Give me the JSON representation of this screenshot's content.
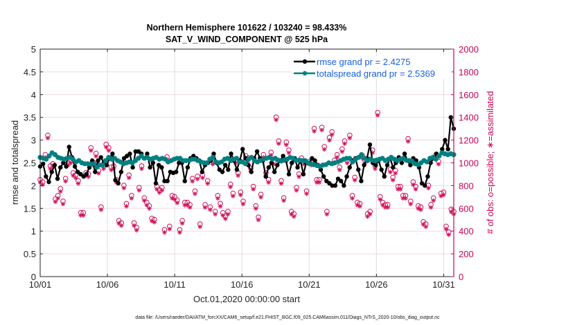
{
  "chart_data": {
    "type": "line",
    "title": "Northern Hemisphere 101622 / 103240 = 98.433%",
    "subtitle": "SAT_V_WIND_COMPONENT @ 525 hPa",
    "xlabel": "Oct.01,2020 00:00:00 start",
    "ylabel": "rmse and totalspread",
    "y2label": "# of obs: o=possible; ∗=assimilated",
    "xlim_days": [
      0,
      30.75
    ],
    "ylim": [
      0,
      5
    ],
    "y2lim": [
      0,
      2000
    ],
    "x_ticks": [
      {
        "day": 0,
        "label": "10/01"
      },
      {
        "day": 5,
        "label": "10/06"
      },
      {
        "day": 10,
        "label": "10/11"
      },
      {
        "day": 15,
        "label": "10/16"
      },
      {
        "day": 20,
        "label": "10/21"
      },
      {
        "day": 25,
        "label": "10/26"
      },
      {
        "day": 30,
        "label": "10/31"
      }
    ],
    "y_ticks": [
      "0",
      "0.5",
      "1",
      "1.5",
      "2",
      "2.5",
      "3",
      "3.5",
      "4",
      "4.5",
      "5"
    ],
    "y2_ticks": [
      "0",
      "200",
      "400",
      "600",
      "800",
      "1000",
      "1200",
      "1400",
      "1600",
      "1800",
      "2000"
    ],
    "grid": true,
    "legend_position": "top-right",
    "time_step_days": 0.25,
    "series": [
      {
        "name": "rmse grand pr = 2.4275",
        "color": "#000000",
        "axis": "left",
        "values": [
          2.42,
          2.48,
          2.2,
          2.08,
          2.3,
          2.45,
          2.15,
          2.4,
          2.5,
          2.42,
          2.85,
          2.62,
          2.42,
          2.3,
          2.25,
          2.2,
          2.25,
          2.4,
          2.55,
          2.3,
          2.55,
          2.62,
          2.5,
          2.45,
          2.6,
          2.7,
          2.12,
          2.05,
          2.3,
          2.6,
          2.65,
          2.7,
          2.4,
          2.75,
          2.75,
          2.7,
          2.6,
          2.7,
          2.4,
          2.5,
          2.05,
          2.45,
          2.4,
          2.1,
          2.1,
          2.3,
          2.28,
          2.3,
          2.5,
          2.5,
          2.1,
          2.4,
          2.6,
          2.65,
          2.6,
          2.55,
          2.3,
          2.45,
          2.5,
          2.55,
          2.7,
          2.5,
          2.35,
          2.3,
          2.45,
          2.35,
          2.7,
          2.55,
          2.35,
          2.55,
          2.8,
          2.6,
          2.45,
          2.3,
          2.6,
          2.75,
          2.6,
          2.55,
          2.2,
          2.4,
          2.5,
          2.3,
          2.45,
          2.55,
          2.65,
          2.55,
          2.25,
          2.5,
          2.6,
          2.4,
          2.55,
          2.25,
          2.5,
          2.5,
          2.6,
          2.55,
          2.45,
          2.35,
          2.2,
          2.1,
          2.05,
          2.0,
          2.0,
          2.15,
          2.1,
          2.0,
          2.2,
          2.4,
          2.55,
          2.6,
          2.35,
          2.1,
          2.45,
          2.6,
          2.9,
          2.5,
          2.45,
          2.55,
          2.35,
          2.2,
          2.45,
          2.6,
          2.4,
          2.5,
          2.62,
          2.5,
          2.7,
          2.55,
          2.45,
          2.6,
          2.55,
          2.4,
          2.05,
          2.0,
          2.2,
          2.5,
          2.6,
          2.7,
          2.65,
          2.8,
          3.0,
          2.8,
          3.5,
          3.25
        ]
      },
      {
        "name": "totalspread grand pr = 2.5369",
        "color": "#008080",
        "axis": "left",
        "values": [
          2.62,
          2.6,
          2.58,
          2.65,
          2.72,
          2.68,
          2.62,
          2.6,
          2.58,
          2.6,
          2.62,
          2.58,
          2.52,
          2.55,
          2.5,
          2.48,
          2.48,
          2.47,
          2.48,
          2.4,
          2.45,
          2.45,
          2.55,
          2.62,
          2.58,
          2.6,
          2.55,
          2.52,
          2.48,
          2.5,
          2.52,
          2.5,
          2.55,
          2.6,
          2.65,
          2.6,
          2.62,
          2.58,
          2.6,
          2.62,
          2.58,
          2.6,
          2.58,
          2.52,
          2.55,
          2.58,
          2.6,
          2.6,
          2.55,
          2.55,
          2.55,
          2.58,
          2.58,
          2.55,
          2.52,
          2.5,
          2.5,
          2.58,
          2.62,
          2.52,
          2.5,
          2.52,
          2.58,
          2.6,
          2.55,
          2.58,
          2.6,
          2.52,
          2.52,
          2.48,
          2.58,
          2.62,
          2.55,
          2.52,
          2.55,
          2.58,
          2.6,
          2.62,
          2.58,
          2.6,
          2.56,
          2.54,
          2.56,
          2.58,
          2.62,
          2.6,
          2.55,
          2.56,
          2.55,
          2.55,
          2.5,
          2.48,
          2.46,
          2.44,
          2.42,
          2.45,
          2.46,
          2.5,
          2.48,
          2.5,
          2.52,
          2.55,
          2.58,
          2.6,
          2.6,
          2.52,
          2.58,
          2.62,
          2.68,
          2.6,
          2.55,
          2.58,
          2.55,
          2.56,
          2.58,
          2.6,
          2.55,
          2.58,
          2.62,
          2.58,
          2.55,
          2.58,
          2.6,
          2.56,
          2.55,
          2.54,
          2.48,
          2.46,
          2.5,
          2.55,
          2.52,
          2.6,
          2.62,
          2.58,
          2.65,
          2.72,
          2.7,
          2.68,
          2.7,
          2.68
        ]
      }
    ],
    "obs": {
      "color": "#d0105a",
      "axis": "right",
      "possible": [
        840,
        820,
        1060,
        1230,
        960,
        980,
        670,
        700,
        760,
        650,
        850,
        990,
        1010,
        900,
        880,
        830,
        550,
        550,
        900,
        890,
        1120,
        990,
        1070,
        920,
        600,
        960,
        1150,
        1120,
        950,
        960,
        840,
        480,
        460,
        790,
        630,
        880,
        700,
        460,
        420,
        770,
        960,
        680,
        640,
        610,
        500,
        490,
        780,
        750,
        770,
        400,
        1040,
        430,
        700,
        690,
        660,
        400,
        480,
        640,
        640,
        620,
        850,
        740,
        870,
        450,
        880,
        620,
        830,
        600,
        1000,
        560,
        700,
        630,
        550,
        520,
        560,
        800,
        720,
        1010,
        900,
        730,
        650,
        1050,
        1030,
        940,
        780,
        610,
        510,
        710,
        1060,
        900,
        840,
        1080,
        1000,
        1390,
        1180,
        830,
        680,
        1170,
        1100,
        560,
        540,
        770,
        890,
        1030,
        1000,
        740,
        1000,
        990,
        1290,
        840,
        840,
        1300,
        1130,
        560,
        1210,
        1260,
        1010,
        1060,
        950,
        1110,
        1180,
        1010,
        1230,
        700,
        860,
        640,
        630,
        1050,
        1010,
        540,
        560,
        1100,
        960,
        1430,
        690,
        640,
        620,
        620,
        930,
        860,
        920,
        780,
        780,
        700,
        700,
        1200,
        650,
        820,
        780,
        610,
        600,
        470,
        450,
        790,
        620,
        680,
        1060,
        1000,
        720,
        730,
        430,
        380,
        580,
        560
      ]
    }
  },
  "footer": {
    "data_file": "data file: /Users/raeder/DAI/ATM_forcXX/CAM6_setup/f.e21.FHIST_BGC.f09_025.CAM6assim.011/Diags_NTrS_2020-10/obs_diag_output.nc"
  }
}
